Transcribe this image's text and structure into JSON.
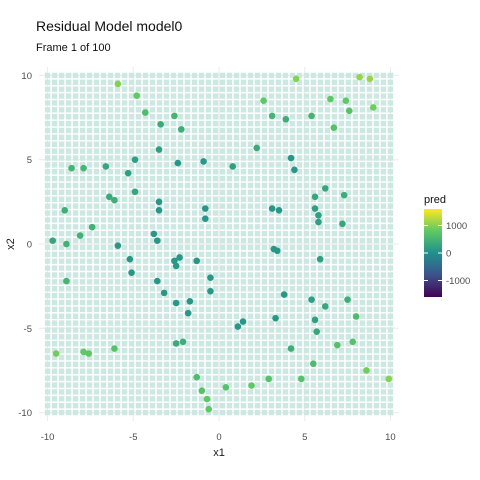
{
  "chart_data": {
    "type": "scatter",
    "title": "Residual Model model0",
    "subtitle": "Frame 1 of 100",
    "xlabel": "x1",
    "ylabel": "x2",
    "xlim": [
      -10.5,
      10.5
    ],
    "ylim": [
      -10.5,
      10.5
    ],
    "x_ticks": [
      -10,
      -5,
      0,
      5,
      10
    ],
    "y_ticks": [
      -10,
      -5,
      0,
      5,
      10
    ],
    "grid": true,
    "background_grid": "dense light-teal prediction tiles covering x1 -10..10, x2 -10..10",
    "legend": {
      "title": "pred",
      "placement": "right",
      "ticks": [
        1000,
        0,
        -1000
      ],
      "range": [
        -1600,
        1600
      ],
      "colormap": "viridis",
      "colors": [
        "#440154",
        "#3b528b",
        "#21908c",
        "#5dc963",
        "#fde725"
      ]
    },
    "points": [
      [
        -9.7,
        0.2,
        300
      ],
      [
        -9.5,
        -6.5,
        900
      ],
      [
        -9.0,
        2.0,
        400
      ],
      [
        -8.9,
        0.0,
        450
      ],
      [
        -8.9,
        -2.2,
        500
      ],
      [
        -8.6,
        4.5,
        500
      ],
      [
        -8.1,
        0.5,
        450
      ],
      [
        -7.9,
        4.5,
        500
      ],
      [
        -7.9,
        -6.4,
        800
      ],
      [
        -7.6,
        -6.5,
        800
      ],
      [
        -7.4,
        1.0,
        450
      ],
      [
        -6.6,
        4.6,
        300
      ],
      [
        -6.4,
        2.8,
        350
      ],
      [
        -6.1,
        2.6,
        400
      ],
      [
        -6.1,
        -6.2,
        700
      ],
      [
        -5.9,
        -0.1,
        100
      ],
      [
        -5.9,
        9.5,
        1000
      ],
      [
        -5.3,
        4.2,
        200
      ],
      [
        -5.2,
        -0.9,
        100
      ],
      [
        -5.1,
        -1.7,
        100
      ],
      [
        -4.9,
        5.0,
        200
      ],
      [
        -4.9,
        3.1,
        300
      ],
      [
        -4.8,
        8.8,
        800
      ],
      [
        -4.3,
        7.8,
        600
      ],
      [
        -3.8,
        0.6,
        100
      ],
      [
        -3.6,
        0.2,
        100
      ],
      [
        -3.6,
        -2.2,
        100
      ],
      [
        -3.5,
        5.6,
        200
      ],
      [
        -3.5,
        2.5,
        100
      ],
      [
        -3.5,
        2.0,
        100
      ],
      [
        -3.4,
        7.1,
        350
      ],
      [
        -3.2,
        -2.9,
        100
      ],
      [
        -2.6,
        7.6,
        500
      ],
      [
        -2.6,
        -1.0,
        100
      ],
      [
        -2.5,
        -1.3,
        100
      ],
      [
        -2.5,
        -5.9,
        350
      ],
      [
        -2.5,
        -3.5,
        100
      ],
      [
        -2.4,
        4.8,
        100
      ],
      [
        -2.3,
        -0.8,
        100
      ],
      [
        -2.2,
        6.8,
        400
      ],
      [
        -2.1,
        -5.8,
        400
      ],
      [
        -1.8,
        -4.1,
        100
      ],
      [
        -1.7,
        -3.4,
        100
      ],
      [
        -1.3,
        -7.9,
        600
      ],
      [
        -1.3,
        -1.0,
        100
      ],
      [
        -1.0,
        -8.7,
        700
      ],
      [
        -0.9,
        4.9,
        100
      ],
      [
        -0.8,
        2.1,
        100
      ],
      [
        -0.8,
        1.5,
        100
      ],
      [
        -0.7,
        -9.2,
        800
      ],
      [
        -0.6,
        -9.8,
        800
      ],
      [
        -0.5,
        -2.0,
        100
      ],
      [
        -0.5,
        -2.8,
        100
      ],
      [
        0.4,
        -8.5,
        700
      ],
      [
        0.8,
        4.6,
        200
      ],
      [
        1.1,
        -4.9,
        100
      ],
      [
        1.4,
        -4.6,
        100
      ],
      [
        1.9,
        -8.4,
        800
      ],
      [
        2.2,
        5.7,
        350
      ],
      [
        2.6,
        8.5,
        800
      ],
      [
        2.9,
        -8.0,
        700
      ],
      [
        3.1,
        2.1,
        100
      ],
      [
        3.1,
        7.6,
        500
      ],
      [
        3.2,
        -0.3,
        100
      ],
      [
        3.3,
        -4.4,
        100
      ],
      [
        3.4,
        -0.4,
        100
      ],
      [
        3.5,
        2.0,
        100
      ],
      [
        3.8,
        -3.0,
        100
      ],
      [
        3.9,
        7.4,
        400
      ],
      [
        4.2,
        -6.2,
        400
      ],
      [
        4.2,
        5.1,
        100
      ],
      [
        4.4,
        4.4,
        100
      ],
      [
        4.5,
        9.8,
        1000
      ],
      [
        4.8,
        -8.0,
        700
      ],
      [
        5.4,
        7.6,
        500
      ],
      [
        5.4,
        -3.3,
        200
      ],
      [
        5.5,
        -7.1,
        600
      ],
      [
        5.6,
        2.8,
        300
      ],
      [
        5.6,
        2.1,
        200
      ],
      [
        5.6,
        -4.5,
        200
      ],
      [
        5.7,
        -5.2,
        300
      ],
      [
        5.8,
        1.7,
        200
      ],
      [
        5.8,
        1.3,
        200
      ],
      [
        5.9,
        -0.9,
        200
      ],
      [
        6.2,
        3.3,
        300
      ],
      [
        6.2,
        -3.7,
        300
      ],
      [
        6.5,
        8.6,
        800
      ],
      [
        6.7,
        6.9,
        700
      ],
      [
        6.9,
        -6.0,
        700
      ],
      [
        7.2,
        1.2,
        300
      ],
      [
        7.3,
        2.9,
        400
      ],
      [
        7.4,
        8.5,
        800
      ],
      [
        7.5,
        -3.3,
        400
      ],
      [
        7.6,
        7.9,
        700
      ],
      [
        7.8,
        -5.8,
        700
      ],
      [
        8.0,
        -4.3,
        600
      ],
      [
        8.2,
        9.9,
        1100
      ],
      [
        8.6,
        -7.5,
        900
      ],
      [
        8.8,
        9.8,
        1100
      ],
      [
        9.0,
        8.1,
        900
      ],
      [
        9.9,
        -8.0,
        1000
      ]
    ]
  }
}
